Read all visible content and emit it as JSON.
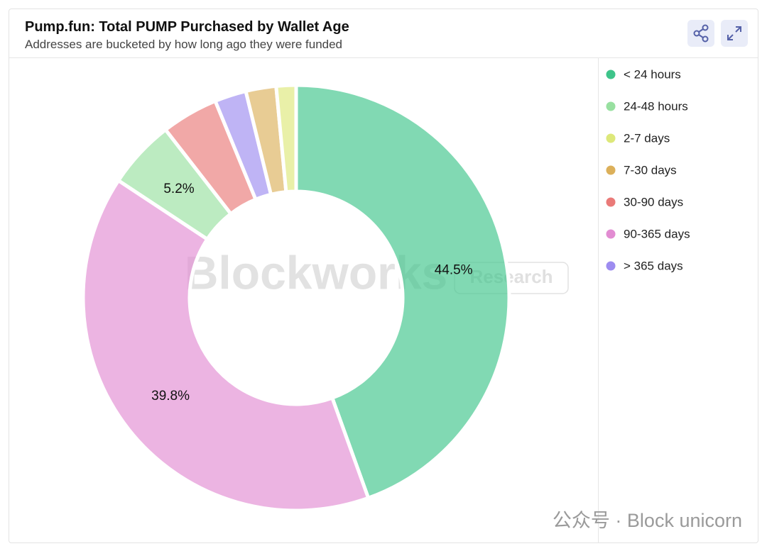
{
  "chart_data": {
    "type": "pie",
    "title": "Pump.fun: Total PUMP Purchased by Wallet Age",
    "subtitle": "Addresses are bucketed by how long ago they were funded",
    "categories": [
      "< 24 hours",
      "24-48 hours",
      "2-7 days",
      "7-30 days",
      "30-90 days",
      "90-365 days",
      "> 365 days"
    ],
    "values": [
      44.5,
      5.2,
      1.5,
      2.3,
      4.3,
      39.8,
      2.4
    ],
    "value_labels": [
      "44.5%",
      "5.2%",
      null,
      null,
      null,
      "39.8%",
      null
    ],
    "colors": [
      "#3ec48a",
      "#98e0a0",
      "#dde87a",
      "#dcb05a",
      "#ea7a78",
      "#e28cd2",
      "#9d8cf0"
    ],
    "slice_order": "descending",
    "legend": "right",
    "watermark": "Blockworks",
    "watermark_badge": "Research",
    "footer_credit": "公众号 · Block unicorn"
  }
}
